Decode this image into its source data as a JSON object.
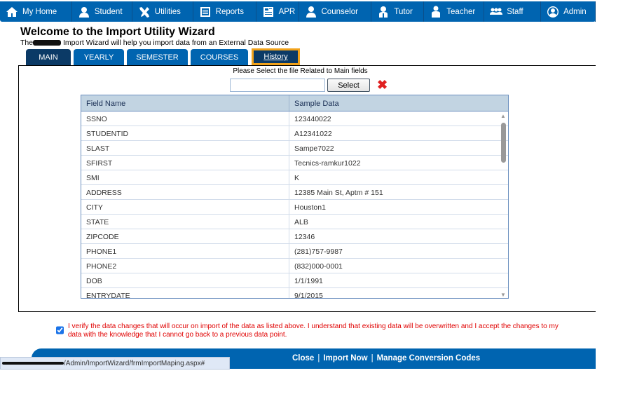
{
  "nav": [
    {
      "label": "My Home",
      "icon": "home-icon"
    },
    {
      "label": "Student",
      "icon": "student-icon"
    },
    {
      "label": "Utilities",
      "icon": "tools-icon"
    },
    {
      "label": "Reports",
      "icon": "list-icon"
    },
    {
      "label": "APR",
      "icon": "document-icon"
    },
    {
      "label": "Counselor",
      "icon": "person-icon"
    },
    {
      "label": "Tutor",
      "icon": "tutor-icon"
    },
    {
      "label": "Teacher",
      "icon": "teacher-icon"
    },
    {
      "label": "Staff",
      "icon": "group-icon"
    },
    {
      "label": "Admin",
      "icon": "admin-icon"
    }
  ],
  "header": {
    "title": "Welcome to the Import Utility Wizard",
    "subtitle_pre": "The",
    "subtitle_post": "Import Wizard will help you import data from an External Data Source"
  },
  "tabs": [
    "MAIN",
    "YEARLY",
    "SEMESTER",
    "COURSES",
    "History"
  ],
  "file": {
    "prompt": "Please Select the file Related to Main fields",
    "value": "",
    "select_label": "Select",
    "clear_icon": "✖"
  },
  "table": {
    "headers": [
      "Field Name",
      "Sample Data"
    ],
    "rows": [
      [
        "SSNO",
        "123440022"
      ],
      [
        "STUDENTID",
        "A12341022"
      ],
      [
        "SLAST",
        "Sampe7022"
      ],
      [
        "SFIRST",
        "Tecnics-ramkur1022"
      ],
      [
        "SMI",
        "K"
      ],
      [
        "ADDRESS",
        "12385 Main St, Aptm # 151"
      ],
      [
        "CITY",
        "Houston1"
      ],
      [
        "STATE",
        "ALB"
      ],
      [
        "ZIPCODE",
        "12346"
      ],
      [
        "PHONE1",
        "(281)757-9987"
      ],
      [
        "PHONE2",
        "(832)000-0001"
      ],
      [
        "DOB",
        "1/1/1991"
      ],
      [
        "ENTRYDATE",
        "9/1/2015"
      ]
    ]
  },
  "verify": {
    "checked": true,
    "text": "I verify the data changes that will occur on import of the data as listed above. I understand that existing data will be overwritten and I accept the changes to my data with the knowledge that I cannot go back to a previous data point."
  },
  "footer": {
    "close": "Close",
    "import": "Import Now",
    "manage": "Manage Conversion Codes",
    "sep": "|"
  },
  "status_url": "/Admin/ImportWizard/frmImportMaping.aspx#",
  "colors": {
    "brand": "#0064b0",
    "tab_active": "#0b3a66",
    "highlight": "#f2a21a",
    "warning": "#e00000"
  }
}
